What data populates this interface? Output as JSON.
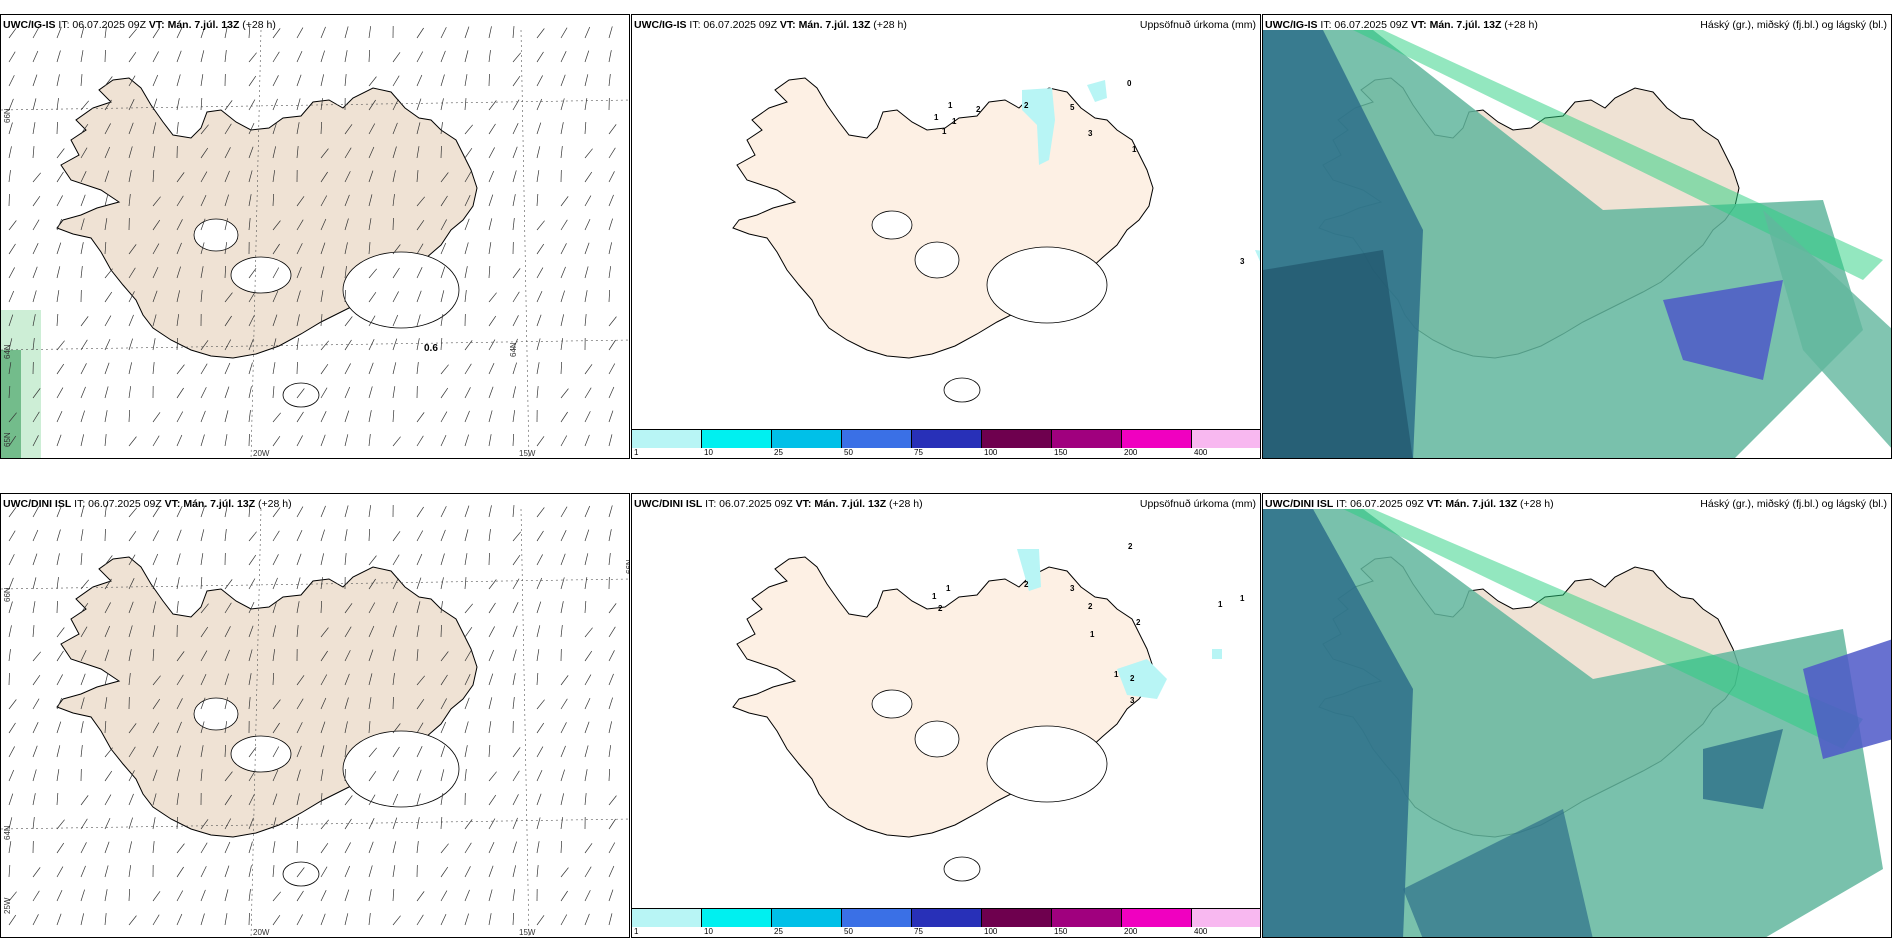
{
  "rows": [
    {
      "model": "UWC/IG-IS",
      "it_label": "IT: 06.07.2025 09Z",
      "vt_label": "VT: Mán. 7.júl. 13Z",
      "lead": "(+28 h)"
    },
    {
      "model": "UWC/DINI ISL",
      "it_label": "IT: 06.07.2025 09Z",
      "vt_label": "VT: Mán. 7.júl. 13Z",
      "lead": "(+28 h)"
    }
  ],
  "panel_titles": {
    "precip": "Uppsöfnuð úrkoma (mm)",
    "clouds": "Háský (gr.), miðský (fj.bl.) og lágský (bl.)"
  },
  "grid_labels": {
    "lat_66": "66N",
    "lat_64": "64N",
    "lat_65": "65N",
    "lon_20w": "20W",
    "lon_15w": "15W",
    "lon_25w": "25W"
  },
  "wind_marker": "0.6",
  "colorbar": {
    "colors": [
      "#b8f5f5",
      "#00f0f0",
      "#00c0e8",
      "#3a70e6",
      "#2830b8",
      "#6e004e",
      "#a0007e",
      "#f000c0",
      "#f8b8f0"
    ],
    "ticks": [
      "1",
      "10",
      "25",
      "50",
      "75",
      "100",
      "150",
      "200",
      "400"
    ]
  },
  "precip_numbers_top": [
    "1",
    "1",
    "2",
    "2",
    "5",
    "3",
    "1",
    "1",
    "1",
    "3",
    "0"
  ],
  "precip_numbers_bottom": [
    "1",
    "1",
    "2",
    "2",
    "3",
    "2",
    "2",
    "1",
    "1",
    "1",
    "2",
    "3",
    "1",
    "2"
  ],
  "colors": {
    "land_wind": "#efe2d4",
    "land_precip": "#fdf0e4",
    "cloud_low": "#2d6f8a",
    "cloud_mid": "#62b69e",
    "cloud_high": "#4d58c8",
    "cloud_green": "#28d080"
  }
}
